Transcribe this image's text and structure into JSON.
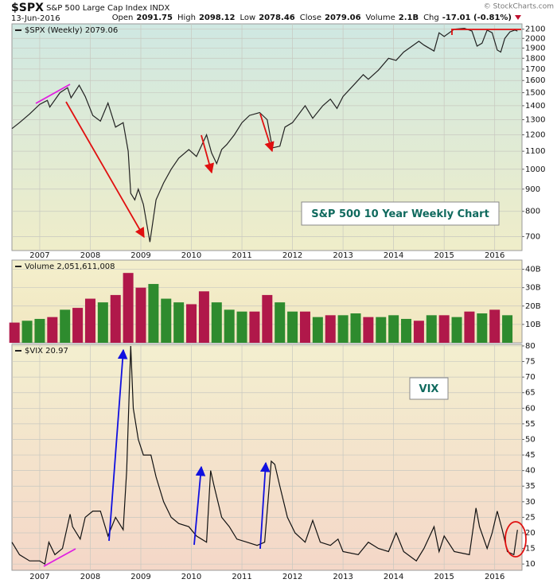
{
  "header": {
    "symbol": "$SPX",
    "name": "S&P 500 Large Cap Index",
    "exchange": "INDX",
    "date": "13-Jun-2016",
    "credit": "© StockCharts.com",
    "quote": [
      {
        "label": "Open",
        "value": 2091.75
      },
      {
        "label": "High",
        "value": 2098.12
      },
      {
        "label": "Low",
        "value": 2078.46
      },
      {
        "label": "Close",
        "value": 2079.06
      },
      {
        "label": "Volume",
        "value": "2.1B"
      },
      {
        "label": "Chg",
        "value": "-17.01 (-0.81%)"
      }
    ]
  },
  "chart_data": [
    {
      "type": "line",
      "legend": "$SPX (Weekly) 2079.06",
      "annotation": "S&P 500 10 Year Weekly Chart",
      "color": "#222222",
      "log_scale": true,
      "grid": true,
      "xlim": [
        2006.45,
        2016.54
      ],
      "xticks": [
        2007,
        2008,
        2009,
        2010,
        2011,
        2012,
        2013,
        2014,
        2015,
        2016
      ],
      "ylim": [
        650,
        2160
      ],
      "yticks": [
        700,
        800,
        900,
        1000,
        1100,
        1200,
        1300,
        1400,
        1500,
        1600,
        1700,
        1800,
        1900,
        2000,
        2100
      ],
      "x": [
        2006.45,
        2006.6,
        2006.8,
        2007.0,
        2007.15,
        2007.2,
        2007.4,
        2007.55,
        2007.62,
        2007.78,
        2007.9,
        2008.05,
        2008.2,
        2008.35,
        2008.5,
        2008.65,
        2008.75,
        2008.8,
        2008.88,
        2008.95,
        2009.05,
        2009.18,
        2009.3,
        2009.45,
        2009.6,
        2009.75,
        2009.95,
        2010.1,
        2010.3,
        2010.4,
        2010.5,
        2010.6,
        2010.7,
        2010.85,
        2011.0,
        2011.15,
        2011.35,
        2011.5,
        2011.6,
        2011.75,
        2011.85,
        2012.0,
        2012.25,
        2012.4,
        2012.6,
        2012.75,
        2012.88,
        2013.0,
        2013.25,
        2013.4,
        2013.5,
        2013.7,
        2013.9,
        2014.05,
        2014.2,
        2014.5,
        2014.6,
        2014.8,
        2014.9,
        2015.0,
        2015.2,
        2015.4,
        2015.55,
        2015.65,
        2015.75,
        2015.85,
        2015.95,
        2016.05,
        2016.12,
        2016.2,
        2016.3,
        2016.4,
        2016.45
      ],
      "values": [
        1240,
        1280,
        1340,
        1410,
        1440,
        1390,
        1500,
        1540,
        1460,
        1560,
        1470,
        1330,
        1290,
        1420,
        1250,
        1280,
        1100,
        880,
        850,
        900,
        830,
        680,
        850,
        930,
        1000,
        1060,
        1110,
        1070,
        1200,
        1090,
        1030,
        1110,
        1140,
        1200,
        1280,
        1330,
        1350,
        1300,
        1120,
        1130,
        1250,
        1280,
        1400,
        1310,
        1400,
        1450,
        1380,
        1470,
        1580,
        1650,
        1610,
        1690,
        1800,
        1780,
        1860,
        1970,
        1930,
        1870,
        2060,
        2020,
        2100,
        2110,
        2080,
        1920,
        1950,
        2090,
        2060,
        1880,
        1860,
        2000,
        2070,
        2090,
        2079.06
      ]
    },
    {
      "type": "bar",
      "legend": "Volume 2,051,611,008",
      "grid": true,
      "xlim": [
        2006.45,
        2016.54
      ],
      "ylim": [
        0,
        45000000000
      ],
      "yticks": [
        {
          "value": 10000000000,
          "label": "10B"
        },
        {
          "value": 20000000000,
          "label": "20B"
        },
        {
          "value": 30000000000,
          "label": "30B"
        },
        {
          "value": 40000000000,
          "label": "40B"
        }
      ],
      "x": [
        2006.5,
        2006.75,
        2007.0,
        2007.25,
        2007.5,
        2007.75,
        2008.0,
        2008.25,
        2008.5,
        2008.75,
        2009.0,
        2009.25,
        2009.5,
        2009.75,
        2010.0,
        2010.25,
        2010.5,
        2010.75,
        2011.0,
        2011.25,
        2011.5,
        2011.75,
        2012.0,
        2012.25,
        2012.5,
        2012.75,
        2013.0,
        2013.25,
        2013.5,
        2013.75,
        2014.0,
        2014.25,
        2014.5,
        2014.75,
        2015.0,
        2015.25,
        2015.5,
        2015.75,
        2016.0,
        2016.25
      ],
      "values": [
        11000000000,
        12000000000,
        13000000000,
        14000000000,
        18000000000,
        19000000000,
        24000000000,
        22000000000,
        26000000000,
        38000000000,
        30000000000,
        32000000000,
        24000000000,
        22000000000,
        21000000000,
        28000000000,
        22000000000,
        18000000000,
        17000000000,
        17000000000,
        26000000000,
        22000000000,
        17000000000,
        17000000000,
        14000000000,
        15000000000,
        15000000000,
        16000000000,
        14000000000,
        14000000000,
        15000000000,
        13000000000,
        12000000000,
        15000000000,
        15000000000,
        14000000000,
        17000000000,
        16000000000,
        18000000000,
        15000000000
      ],
      "colors": [
        "#b0184a",
        "#2e8b2e",
        "#2e8b2e",
        "#b0184a",
        "#2e8b2e",
        "#b0184a",
        "#b0184a",
        "#2e8b2e",
        "#b0184a",
        "#b0184a",
        "#b0184a",
        "#2e8b2e",
        "#2e8b2e",
        "#2e8b2e",
        "#b0184a",
        "#b0184a",
        "#2e8b2e",
        "#2e8b2e",
        "#2e8b2e",
        "#b0184a",
        "#b0184a",
        "#2e8b2e",
        "#2e8b2e",
        "#b0184a",
        "#2e8b2e",
        "#b0184a",
        "#2e8b2e",
        "#2e8b2e",
        "#b0184a",
        "#2e8b2e",
        "#2e8b2e",
        "#2e8b2e",
        "#b0184a",
        "#2e8b2e",
        "#b0184a",
        "#2e8b2e",
        "#b0184a",
        "#2e8b2e",
        "#b0184a",
        "#2e8b2e"
      ]
    },
    {
      "type": "line",
      "legend": "$VIX 20.97",
      "annotation": "VIX",
      "color": "#111111",
      "grid": true,
      "xlim": [
        2006.45,
        2016.54
      ],
      "xticks": [
        2007,
        2008,
        2009,
        2010,
        2011,
        2012,
        2013,
        2014,
        2015,
        2016
      ],
      "ylim": [
        8,
        80.5
      ],
      "yticks": [
        10,
        15,
        20,
        25,
        30,
        35,
        40,
        45,
        50,
        55,
        60,
        65,
        70,
        75,
        80
      ],
      "x": [
        2006.45,
        2006.6,
        2006.8,
        2007.0,
        2007.1,
        2007.18,
        2007.3,
        2007.45,
        2007.6,
        2007.65,
        2007.8,
        2007.9,
        2008.05,
        2008.2,
        2008.35,
        2008.5,
        2008.65,
        2008.72,
        2008.8,
        2008.85,
        2008.95,
        2009.05,
        2009.2,
        2009.3,
        2009.45,
        2009.6,
        2009.75,
        2009.95,
        2010.1,
        2010.3,
        2010.38,
        2010.45,
        2010.6,
        2010.75,
        2010.9,
        2011.1,
        2011.3,
        2011.45,
        2011.58,
        2011.65,
        2011.75,
        2011.9,
        2012.05,
        2012.25,
        2012.4,
        2012.55,
        2012.75,
        2012.9,
        2013.0,
        2013.3,
        2013.5,
        2013.7,
        2013.9,
        2014.05,
        2014.2,
        2014.45,
        2014.6,
        2014.8,
        2014.9,
        2015.0,
        2015.2,
        2015.5,
        2015.63,
        2015.7,
        2015.85,
        2015.95,
        2016.05,
        2016.15,
        2016.25,
        2016.38,
        2016.45
      ],
      "values": [
        17,
        13,
        11,
        11,
        10,
        17,
        13,
        15,
        26,
        22,
        18,
        25,
        27,
        27,
        19,
        25,
        21,
        40,
        80,
        60,
        50,
        45,
        45,
        38,
        30,
        25,
        23,
        22,
        19,
        17,
        40,
        35,
        25,
        22,
        18,
        17,
        16,
        17,
        43,
        42,
        35,
        25,
        20,
        17,
        24,
        17,
        16,
        18,
        14,
        13,
        17,
        15,
        14,
        20,
        14,
        11,
        15,
        22,
        14,
        19,
        14,
        13,
        28,
        22,
        15,
        20,
        27,
        21,
        14,
        13,
        20.97
      ]
    }
  ]
}
